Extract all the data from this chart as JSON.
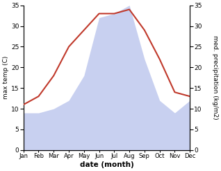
{
  "months": [
    "Jan",
    "Feb",
    "Mar",
    "Apr",
    "May",
    "Jun",
    "Jul",
    "Aug",
    "Sep",
    "Oct",
    "Nov",
    "Dec"
  ],
  "temperature": [
    11,
    13,
    18,
    25,
    29,
    33,
    33,
    34,
    29,
    22,
    14,
    13
  ],
  "precipitation": [
    9,
    9,
    10,
    12,
    18,
    32,
    33,
    35,
    22,
    12,
    9,
    12
  ],
  "temp_color": "#c0392b",
  "precip_fill_color": "#c8d0f0",
  "temp_ylim": [
    0,
    35
  ],
  "precip_ylim": [
    0,
    35
  ],
  "yticks": [
    0,
    5,
    10,
    15,
    20,
    25,
    30,
    35
  ],
  "ylabel_left": "max temp (C)",
  "ylabel_right": "med. precipitation (kg/m2)",
  "xlabel": "date (month)",
  "bg_color": "#ffffff"
}
